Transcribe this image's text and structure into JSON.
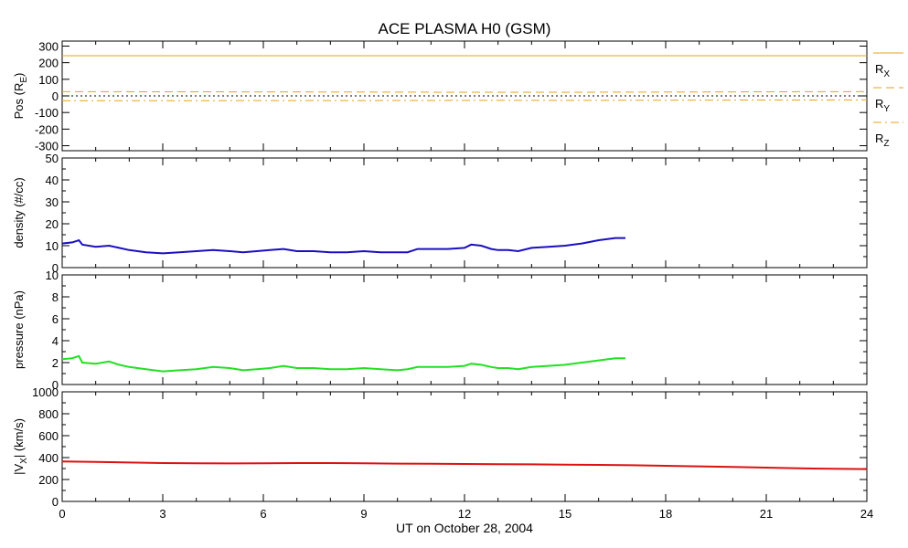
{
  "title": "ACE PLASMA H0 (GSM)",
  "x_axis": {
    "label": "UT on October 28, 2004",
    "ticks": [
      "0",
      "3",
      "6",
      "9",
      "12",
      "15",
      "18",
      "21",
      "24"
    ],
    "range": [
      0,
      24
    ]
  },
  "panels": [
    {
      "id": "pos",
      "ylabel_main": "Pos (R",
      "ylabel_sub": "E",
      "ylabel_end": ")",
      "ylim": [
        -330,
        330
      ],
      "yticks": [
        "300",
        "200",
        "100",
        "0",
        "-100",
        "-200",
        "-300"
      ],
      "legend": [
        {
          "label": "R",
          "sub": "X",
          "style": "solid",
          "color": "#E8A317"
        },
        {
          "label": "R",
          "sub": "Y",
          "style": "dashed",
          "color": "#E8A317"
        },
        {
          "label": "R",
          "sub": "Z",
          "style": "dashdot",
          "color": "#E8A317"
        }
      ]
    },
    {
      "id": "density",
      "ylabel_main": "density (#/cc)",
      "ylim": [
        0,
        50
      ],
      "yticks": [
        "50",
        "40",
        "30",
        "20",
        "10",
        "0"
      ]
    },
    {
      "id": "pressure",
      "ylabel_main": "pressure (nPa)",
      "ylim": [
        0,
        10
      ],
      "yticks": [
        "10",
        "8",
        "6",
        "4",
        "2",
        "0"
      ]
    },
    {
      "id": "vx",
      "ylabel_main": "|V",
      "ylabel_sub": "X",
      "ylabel_end": "| (km/s)",
      "ylim": [
        0,
        1000
      ],
      "yticks": [
        "1000",
        "800",
        "600",
        "400",
        "200",
        "0"
      ]
    }
  ],
  "chart_data": [
    {
      "type": "line",
      "panel": "pos",
      "xlabel": "",
      "ylabel": "Pos (RE)",
      "ylim": [
        -330,
        330
      ],
      "x": [
        0,
        3,
        6,
        9,
        12,
        15,
        18,
        21,
        24
      ],
      "series": [
        {
          "name": "RX",
          "color": "#E8A317",
          "style": "solid",
          "values": [
            242,
            242,
            242,
            242,
            242,
            242,
            242,
            242,
            242
          ]
        },
        {
          "name": "RY",
          "color": "#E8A317",
          "style": "dashed",
          "values": [
            26,
            25,
            24,
            23,
            22,
            22,
            23,
            25,
            26
          ]
        },
        {
          "name": "RZ",
          "color": "#E8A317",
          "style": "dashdot",
          "values": [
            -29,
            -29,
            -28,
            -28,
            -27,
            -27,
            -26,
            -25,
            -24
          ]
        }
      ],
      "reference_line": {
        "y": 0,
        "style": "dotted",
        "color": "#000000"
      }
    },
    {
      "type": "line",
      "panel": "density",
      "ylabel": "density (#/cc)",
      "ylim": [
        0,
        50
      ],
      "color": "#1a0fbf",
      "series": [
        {
          "x": [
            0,
            0.3,
            0.5,
            0.6,
            1.0,
            1.4,
            1.7,
            2.0,
            2.5,
            3.0,
            3.5,
            4.0,
            4.5,
            5.0,
            5.4,
            5.8,
            6.2,
            6.6,
            7.0,
            7.5,
            8.0,
            8.5,
            9.0,
            9.5,
            10.0,
            10.3,
            10.6,
            11.0,
            11.5,
            12.0,
            12.2,
            12.5,
            12.8,
            13.0,
            13.3,
            13.6,
            14.0,
            14.5,
            15.0,
            15.5,
            16.0,
            16.5,
            16.8
          ],
          "values": [
            11,
            11.5,
            12.5,
            10.5,
            9.5,
            10.0,
            9.0,
            8.0,
            7.0,
            6.5,
            7.0,
            7.5,
            8.0,
            7.5,
            7.0,
            7.5,
            8.0,
            8.5,
            7.5,
            7.5,
            7.0,
            7.0,
            7.5,
            7.0,
            7.0,
            7.0,
            8.5,
            8.5,
            8.5,
            9.0,
            10.5,
            10.0,
            8.5,
            8.0,
            8.0,
            7.5,
            9.0,
            9.5,
            10.0,
            11.0,
            12.5,
            13.5,
            13.5
          ]
        }
      ]
    },
    {
      "type": "line",
      "panel": "pressure",
      "ylabel": "pressure (nPa)",
      "ylim": [
        0,
        10
      ],
      "color": "#22e022",
      "series": [
        {
          "x": [
            0,
            0.3,
            0.5,
            0.6,
            1.0,
            1.4,
            1.7,
            2.0,
            2.5,
            3.0,
            3.5,
            4.0,
            4.5,
            5.0,
            5.4,
            5.8,
            6.2,
            6.6,
            7.0,
            7.5,
            8.0,
            8.5,
            9.0,
            9.5,
            10.0,
            10.3,
            10.6,
            11.0,
            11.5,
            12.0,
            12.2,
            12.5,
            12.8,
            13.0,
            13.3,
            13.6,
            14.0,
            14.5,
            15.0,
            15.5,
            16.0,
            16.5,
            16.8
          ],
          "values": [
            2.3,
            2.4,
            2.6,
            2.0,
            1.9,
            2.1,
            1.8,
            1.6,
            1.4,
            1.2,
            1.3,
            1.4,
            1.6,
            1.5,
            1.3,
            1.4,
            1.5,
            1.7,
            1.5,
            1.5,
            1.4,
            1.4,
            1.5,
            1.4,
            1.3,
            1.4,
            1.6,
            1.6,
            1.6,
            1.7,
            1.9,
            1.8,
            1.6,
            1.5,
            1.5,
            1.4,
            1.6,
            1.7,
            1.8,
            2.0,
            2.2,
            2.4,
            2.4
          ]
        }
      ]
    },
    {
      "type": "line",
      "panel": "vx",
      "ylabel": "|VX| (km/s)",
      "ylim": [
        0,
        1000
      ],
      "color": "#dd1111",
      "series": [
        {
          "x": [
            0,
            1,
            2,
            3,
            4,
            5,
            6,
            7,
            8,
            9,
            10,
            11,
            12,
            13,
            14,
            15,
            16,
            17,
            18,
            19,
            20,
            21,
            22,
            23,
            24
          ],
          "values": [
            365,
            360,
            355,
            350,
            348,
            347,
            348,
            350,
            350,
            348,
            345,
            343,
            342,
            340,
            338,
            336,
            333,
            330,
            325,
            320,
            315,
            308,
            302,
            298,
            295
          ]
        }
      ]
    }
  ]
}
